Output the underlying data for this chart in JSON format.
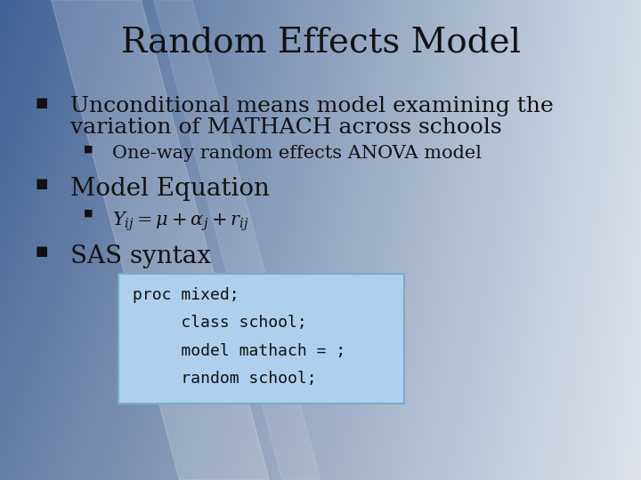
{
  "title": "Random Effects Model",
  "title_fontsize": 28,
  "bullet1_line1": "Unconditional means model examining the",
  "bullet1_line2": "variation of MATHACH across schools",
  "bullet1_fontsize": 18,
  "sub_bullet1": "One-way random effects ANOVA model",
  "sub_bullet1_fontsize": 15,
  "bullet2": "Model Equation",
  "bullet2_fontsize": 20,
  "bullet3": "SAS syntax",
  "bullet3_fontsize": 20,
  "code_lines": [
    "proc mixed;",
    "     class school;",
    "     model mathach = ;",
    "     random school;"
  ],
  "code_fontsize": 13,
  "code_box_color": "#aed0ee",
  "code_box_edge": "#7aaac8",
  "text_color": "#111111"
}
